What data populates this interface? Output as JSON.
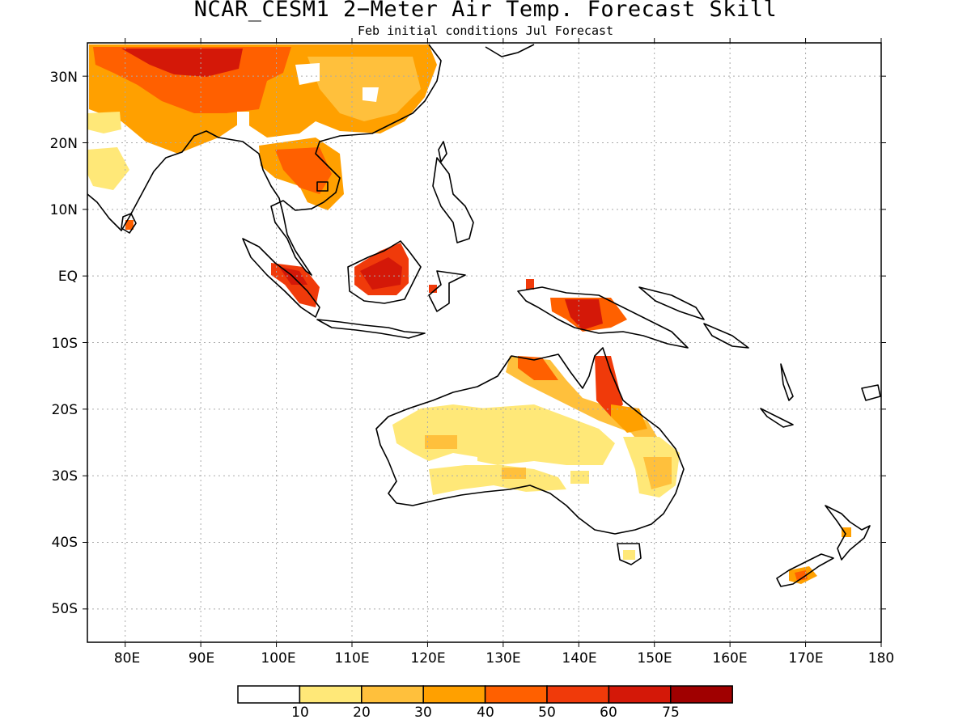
{
  "title": "NCAR_CESM1 2−Meter Air Temp. Forecast Skill",
  "subtitle": "Feb initial conditions  Jul Forecast",
  "lat_ticks": [
    "30N",
    "20N",
    "10N",
    "EQ",
    "10S",
    "20S",
    "30S",
    "40S",
    "50S"
  ],
  "lon_ticks": [
    "80E",
    "90E",
    "100E",
    "110E",
    "120E",
    "130E",
    "140E",
    "150E",
    "160E",
    "170E",
    "180"
  ],
  "colorbar": {
    "labels": [
      "10",
      "20",
      "30",
      "40",
      "50",
      "60",
      "75"
    ],
    "colors": [
      "#ffffff",
      "#ffe878",
      "#ffc03c",
      "#ffa000",
      "#ff6000",
      "#f03a0a",
      "#d41808",
      "#a00000"
    ]
  },
  "map": {
    "lon_range": [
      75,
      180
    ],
    "lat_range": [
      -55,
      35
    ],
    "grid": "dotted",
    "variable": "forecast skill",
    "skill_regions": [
      {
        "name": "tibet-china",
        "class": "high"
      },
      {
        "name": "india-northwest",
        "class": "low"
      },
      {
        "name": "indochina",
        "class": "mid"
      },
      {
        "name": "sumatra",
        "class": "high"
      },
      {
        "name": "borneo",
        "class": "high"
      },
      {
        "name": "new-guinea",
        "class": "high"
      },
      {
        "name": "northern-australia",
        "class": "mid"
      },
      {
        "name": "cape-york",
        "class": "high"
      },
      {
        "name": "western-australia",
        "class": "low"
      },
      {
        "name": "eastern-australia",
        "class": "low"
      },
      {
        "name": "new-zealand",
        "class": "mid"
      }
    ]
  }
}
